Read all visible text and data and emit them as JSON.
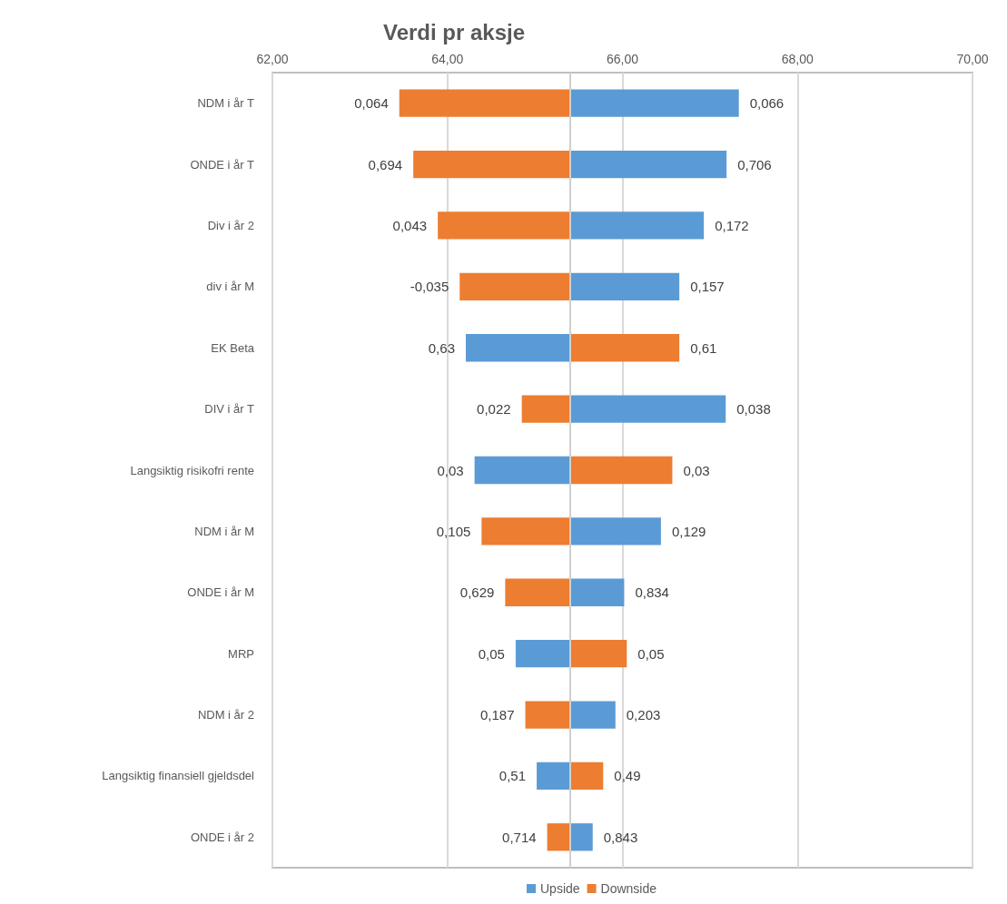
{
  "chart_data": {
    "type": "bar",
    "orientation": "horizontal",
    "title": "Verdi pr aksje",
    "categories": [
      "NDM i år T",
      "ONDE i år T",
      "Div i år 2",
      "div i år M",
      "EK Beta",
      "DIV i år T",
      "Langsiktig risikofri rente",
      "NDM i år M",
      "ONDE i år M",
      "MRP",
      "NDM i år 2",
      "Langsiktig finansiell gjeldsdel",
      "ONDE i år 2"
    ],
    "series": [
      {
        "name": "Upside",
        "color": "#5b9bd5",
        "base": [
          65.4,
          65.4,
          65.4,
          65.4,
          65.4,
          65.4,
          65.4,
          65.4,
          65.4,
          65.4,
          65.4,
          65.4,
          65.4
        ],
        "values": [
          1.93,
          1.79,
          1.53,
          1.25,
          -1.19,
          1.78,
          -1.09,
          1.04,
          0.62,
          -0.62,
          0.52,
          -0.38,
          0.26
        ]
      },
      {
        "name": "Downside",
        "color": "#ed7d31",
        "base": [
          65.4,
          65.4,
          65.4,
          65.4,
          65.4,
          65.4,
          65.4,
          65.4,
          65.4,
          65.4,
          65.4,
          65.4,
          65.4
        ],
        "values": [
          -1.95,
          -1.79,
          -1.51,
          -1.26,
          1.25,
          -0.55,
          1.17,
          -1.01,
          -0.74,
          0.65,
          -0.51,
          0.38,
          -0.26
        ]
      }
    ],
    "annotations": [
      {
        "text": "0,066",
        "x": 67.33,
        "y": "NDM i år T"
      },
      {
        "text": "0,064",
        "x": 63.45,
        "y": "NDM i år T"
      },
      {
        "text": "0,706",
        "x": 67.19,
        "y": "ONDE i år T"
      },
      {
        "text": "0,694",
        "x": 63.61,
        "y": "ONDE i år T"
      },
      {
        "text": "0,172",
        "x": 66.93,
        "y": "Div i år 2"
      },
      {
        "text": "0,043",
        "x": 63.89,
        "y": "Div i år 2"
      },
      {
        "text": "0,157",
        "x": 66.65,
        "y": "div i år M"
      },
      {
        "text": "-0,035",
        "x": 64.14,
        "y": "div i år M"
      },
      {
        "text": "0,63",
        "x": 64.21,
        "y": "EK Beta"
      },
      {
        "text": "0,61",
        "x": 66.65,
        "y": "EK Beta"
      },
      {
        "text": "0,038",
        "x": 67.18,
        "y": "DIV i år T"
      },
      {
        "text": "0,022",
        "x": 64.85,
        "y": "DIV i år T"
      },
      {
        "text": "0,03",
        "x": 64.31,
        "y": "Langsiktig risikofri rente"
      },
      {
        "text": "0,03",
        "x": 66.57,
        "y": "Langsiktig risikofri rente"
      },
      {
        "text": "0,129",
        "x": 66.44,
        "y": "NDM i år M"
      },
      {
        "text": "0,105",
        "x": 64.39,
        "y": "NDM i år M"
      },
      {
        "text": "0,834",
        "x": 66.02,
        "y": "ONDE i år M"
      },
      {
        "text": "0,629",
        "x": 64.66,
        "y": "ONDE i år M"
      },
      {
        "text": "0,05",
        "x": 64.78,
        "y": "MRP"
      },
      {
        "text": "0,05",
        "x": 66.05,
        "y": "MRP"
      },
      {
        "text": "0,203",
        "x": 65.92,
        "y": "NDM i år 2"
      },
      {
        "text": "0,187",
        "x": 64.89,
        "y": "NDM i år 2"
      },
      {
        "text": "0,51",
        "x": 65.02,
        "y": "Langsiktig finansiell gjeldsdel"
      },
      {
        "text": "0,49",
        "x": 65.78,
        "y": "Langsiktig finansiell gjeldsdel"
      },
      {
        "text": "0,843",
        "x": 65.66,
        "y": "ONDE i år 2"
      },
      {
        "text": "0,714",
        "x": 65.14,
        "y": "ONDE i år 2"
      }
    ],
    "xlim": [
      62,
      70
    ],
    "xticks": [
      {
        "value": 62,
        "label": "62,00"
      },
      {
        "value": 64,
        "label": "64,00"
      },
      {
        "value": 66,
        "label": "66,00"
      },
      {
        "value": 68,
        "label": "68,00"
      },
      {
        "value": 70,
        "label": "70,00"
      }
    ],
    "ref_lines": [
      {
        "axis": "x",
        "value": 65.4,
        "label": null,
        "color": "#d0d0d0"
      }
    ],
    "grid": "x",
    "legend": "bottom"
  }
}
